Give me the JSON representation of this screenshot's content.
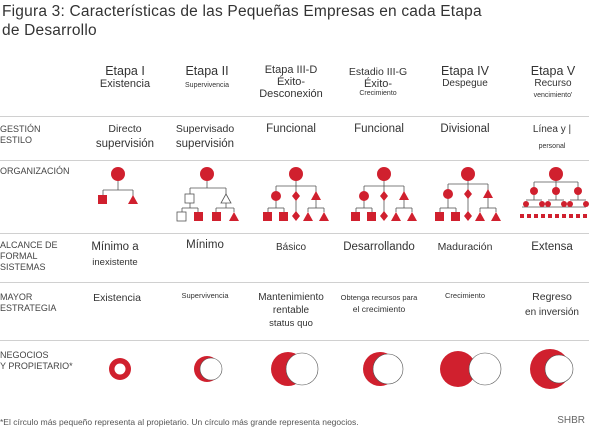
{
  "title_line1": "Figura 3: Características de las Pequeñas Empresas en cada Etapa",
  "title_line2": "de Desarrollo",
  "stages": [
    {
      "name": "Etapa I",
      "sub": "Existencia"
    },
    {
      "name": "Etapa II",
      "sub": "Supervivencia"
    },
    {
      "name": "Etapa III-D",
      "sub1": "Éxito-",
      "sub2": "Desconexión"
    },
    {
      "name": "Estadio III-G",
      "sub1": "Éxito-",
      "sub2": "Crecimiento"
    },
    {
      "name": "Etapa IV",
      "sub": "Despegue"
    },
    {
      "name": "Etapa V",
      "sub1": "Recurso",
      "sub2": "vencimiento'"
    }
  ],
  "rows": {
    "gestion": {
      "label1": "GESTIÓN",
      "label2": "ESTILO"
    },
    "organizacion": {
      "label": "ORGANIZACIÓN"
    },
    "alcance": {
      "label1": "ALCANCE DE",
      "label2": "FORMAL",
      "label3": "SISTEMAS"
    },
    "mayor": {
      "label1": "MAYOR",
      "label2": "ESTRATEGIA"
    },
    "negocios": {
      "label1": "NEGOCIOS",
      "label2": "Y PROPIETARIO*"
    }
  },
  "gestion_cells": [
    {
      "l1": "Directo",
      "l2": "supervisión"
    },
    {
      "l1": "Supervisado",
      "l2": "supervisión"
    },
    {
      "l1": "Funcional"
    },
    {
      "l1": "Funcional"
    },
    {
      "l1": "Divisional"
    },
    {
      "l1": "Línea y  |",
      "l2": "personal"
    }
  ],
  "alcance_cells": [
    {
      "l1": "Mínimo a",
      "l2": "inexistente"
    },
    {
      "l1": "Mínimo"
    },
    {
      "l1": "Básico"
    },
    {
      "l1": "Desarrollando"
    },
    {
      "l1": "Maduración"
    },
    {
      "l1": "Extensa"
    }
  ],
  "mayor_cells": [
    {
      "l1": "Existencia"
    },
    {
      "l1": "Supervivencia"
    },
    {
      "l1": "Mantenimiento",
      "l2": "rentable",
      "l3": "status quo"
    },
    {
      "l1": "Obtenga recursos para",
      "l2": "el crecimiento"
    },
    {
      "l1": "Crecimiento"
    },
    {
      "l1": "Regreso",
      "l2": "en inversión"
    }
  ],
  "footer": "*El círculo más pequeño representa al propietario. Un círculo más grande representa negocios.",
  "brand": "SHBR",
  "colors": {
    "accent": "#d0202e",
    "line": "#cfcfcf",
    "text": "#333333"
  }
}
